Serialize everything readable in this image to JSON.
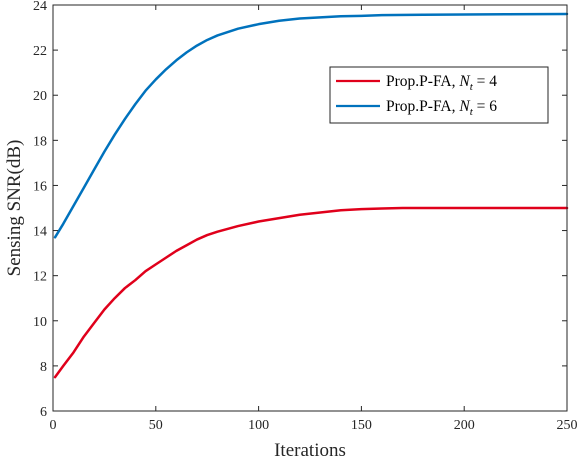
{
  "chart_data": {
    "type": "line",
    "xlabel": "Iterations",
    "ylabel": "Sensing SNR(dB)",
    "xlim": [
      0,
      250
    ],
    "ylim": [
      6,
      24
    ],
    "xticks": [
      0,
      50,
      100,
      150,
      200,
      250
    ],
    "yticks": [
      6,
      8,
      10,
      12,
      14,
      16,
      18,
      20,
      22,
      24
    ],
    "xtick_labels": [
      "0",
      "50",
      "100",
      "150",
      "200",
      "250"
    ],
    "ytick_labels": [
      "6",
      "8",
      "10",
      "12",
      "14",
      "16",
      "18",
      "20",
      "22",
      "24"
    ],
    "grid": false,
    "legend_position": "top-right",
    "series": [
      {
        "name_prefix": "Prop.P-FA, ",
        "name_var": "N",
        "name_sub": "t",
        "name_suffix": " = 4",
        "color": "#e0001b",
        "x": [
          1,
          5,
          10,
          15,
          20,
          25,
          30,
          35,
          40,
          45,
          50,
          55,
          60,
          65,
          70,
          75,
          80,
          90,
          100,
          110,
          120,
          130,
          140,
          150,
          160,
          170,
          180,
          200,
          220,
          250
        ],
        "y": [
          7.5,
          8.0,
          8.6,
          9.3,
          9.9,
          10.5,
          11.0,
          11.45,
          11.8,
          12.2,
          12.5,
          12.8,
          13.1,
          13.35,
          13.6,
          13.8,
          13.95,
          14.2,
          14.4,
          14.55,
          14.7,
          14.8,
          14.9,
          14.95,
          14.98,
          15.0,
          15.0,
          15.0,
          15.0,
          15.0
        ]
      },
      {
        "name_prefix": "Prop.P-FA, ",
        "name_var": "N",
        "name_sub": "t",
        "name_suffix": " = 6",
        "color": "#0072bd",
        "x": [
          1,
          5,
          10,
          15,
          20,
          25,
          30,
          35,
          40,
          45,
          50,
          55,
          60,
          65,
          70,
          75,
          80,
          90,
          100,
          110,
          120,
          130,
          140,
          150,
          160,
          180,
          200,
          220,
          250
        ],
        "y": [
          13.7,
          14.3,
          15.1,
          15.9,
          16.7,
          17.5,
          18.25,
          18.95,
          19.6,
          20.2,
          20.7,
          21.15,
          21.55,
          21.9,
          22.2,
          22.45,
          22.65,
          22.95,
          23.15,
          23.3,
          23.4,
          23.45,
          23.5,
          23.52,
          23.55,
          23.57,
          23.58,
          23.59,
          23.6
        ]
      }
    ]
  }
}
